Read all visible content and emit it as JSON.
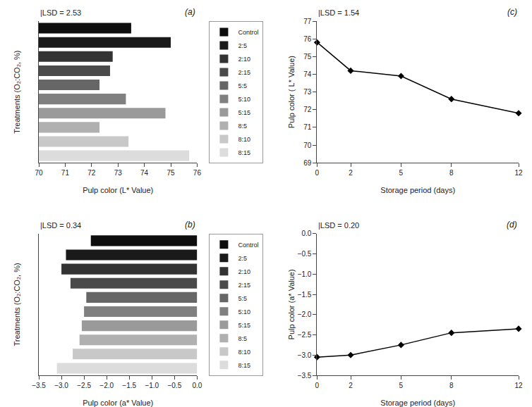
{
  "chart_data": [
    {
      "type": "bar",
      "orientation": "horizontal",
      "title": "(a)",
      "x_label": "Pulp color (L* Value)",
      "y_label": "Treatments (O₂:CO₂, %)",
      "categories": [
        "Control",
        "2:5",
        "2:10",
        "2:15",
        "5:5",
        "5:10",
        "5:15",
        "8:5",
        "8:10",
        "8:15"
      ],
      "values": [
        73.5,
        75.0,
        72.8,
        72.7,
        72.3,
        73.3,
        74.8,
        72.3,
        73.4,
        75.7
      ],
      "colors": [
        "#0d0d0d",
        "#1a1a1a",
        "#333333",
        "#4a4a4a",
        "#666666",
        "#808080",
        "#9a9a9a",
        "#b0b0b0",
        "#c8c8c8",
        "#dcdcdc"
      ],
      "xlim": [
        70,
        76
      ],
      "xticks": [
        70,
        71,
        72,
        73,
        74,
        75,
        76
      ],
      "annotations": [
        "|LSD = 2.53"
      ],
      "legend": "right",
      "grid": false,
      "tick_labels": "x"
    },
    {
      "type": "bar",
      "orientation": "horizontal",
      "title": "(b)",
      "x_label": "Pulp color (a* Value)",
      "y_label": "Treatments (O₂:CO₂, %)",
      "categories": [
        "Control",
        "2:5",
        "2:10",
        "2:15",
        "5:5",
        "5:10",
        "5:15",
        "8:5",
        "8:10",
        "8:15"
      ],
      "values": [
        -2.35,
        -2.9,
        -3.0,
        -2.8,
        -2.45,
        -2.5,
        -2.55,
        -2.6,
        -2.75,
        -3.1
      ],
      "colors": [
        "#0d0d0d",
        "#1a1a1a",
        "#333333",
        "#4a4a4a",
        "#666666",
        "#808080",
        "#9a9a9a",
        "#b0b0b0",
        "#c8c8c8",
        "#dcdcdc"
      ],
      "xlim": [
        -3.5,
        0.0
      ],
      "xticks": [
        {
          "value": -3.5,
          "label": "−3.5"
        },
        {
          "value": -3.0,
          "label": "−3.0"
        },
        {
          "value": -2.5,
          "label": "−2.5"
        },
        {
          "value": -2.0,
          "label": "−2.0"
        },
        {
          "value": -1.5,
          "label": "−1.5"
        },
        {
          "value": -1.0,
          "label": "−1.0"
        },
        {
          "value": -0.5,
          "label": "−0.5"
        },
        {
          "value": 0.0,
          "label": "0.0"
        }
      ],
      "annotations": [
        "|LSD = 0.34"
      ],
      "legend": "right",
      "grid": false,
      "tick_labels": "x"
    },
    {
      "type": "line",
      "title": "(c)",
      "x_label": "Storage period (days)",
      "y_label": "Pulp color ( L* Value)",
      "x": [
        0,
        2,
        5,
        8,
        12
      ],
      "values": [
        75.8,
        74.2,
        73.9,
        72.6,
        71.8
      ],
      "color": "black",
      "marker": "diamond",
      "xlim": [
        0,
        12
      ],
      "xticks": [
        0,
        2,
        5,
        8,
        12
      ],
      "ylim": [
        69,
        77
      ],
      "yticks": [
        69,
        70,
        71,
        72,
        73,
        74,
        75,
        76,
        77
      ],
      "annotations": [
        "|LSD = 1.54"
      ],
      "grid": false
    },
    {
      "type": "line",
      "title": "(d)",
      "x_label": "Storage period (days)",
      "y_label": "Pulp color (a* Value)",
      "x": [
        0,
        2,
        5,
        8,
        12
      ],
      "values": [
        -3.05,
        -3.0,
        -2.75,
        -2.45,
        -2.35
      ],
      "color": "black",
      "marker": "diamond",
      "xlim": [
        0,
        12
      ],
      "xticks": [
        0,
        2,
        5,
        8,
        12
      ],
      "ylim": [
        -3.5,
        0.0
      ],
      "yticks": [
        {
          "value": -3.5,
          "label": "−3.5"
        },
        {
          "value": -3.0,
          "label": "−3.0"
        },
        {
          "value": -2.5,
          "label": "−2.5"
        },
        {
          "value": -2.0,
          "label": "−2.0"
        },
        {
          "value": -1.5,
          "label": "−1.5"
        },
        {
          "value": -1.0,
          "label": "−1.0"
        },
        {
          "value": -0.5,
          "label": "−0.5"
        },
        {
          "value": 0.0,
          "label": "0.0"
        }
      ],
      "annotations": [
        "|LSD = 0.20"
      ],
      "grid": false
    }
  ]
}
